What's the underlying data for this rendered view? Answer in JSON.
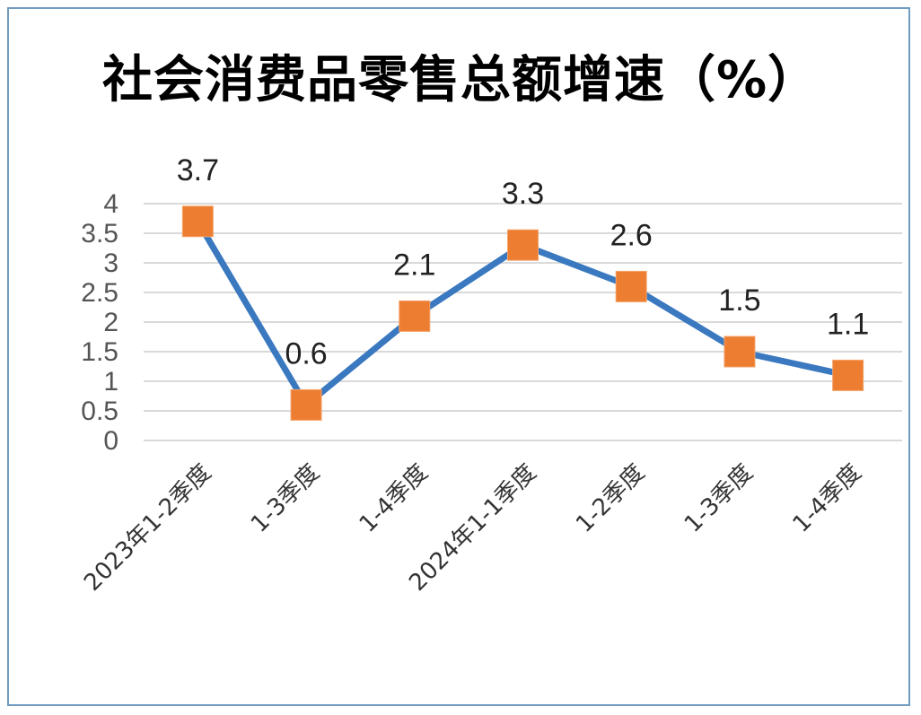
{
  "chart_data": {
    "type": "line",
    "title": "社会消费品零售总额增速（%）",
    "categories": [
      "2023年1-2季度",
      "1-3季度",
      "1-4季度",
      "2024年1-1季度",
      "1-2季度",
      "1-3季度",
      "1-4季度"
    ],
    "series": [
      {
        "values": [
          3.7,
          0.6,
          2.1,
          3.3,
          2.6,
          1.5,
          1.1
        ]
      }
    ],
    "ylim": [
      0,
      4
    ],
    "yticks": [
      "0",
      "0.5",
      "1",
      "1.5",
      "2",
      "2.5",
      "3",
      "3.5",
      "4"
    ],
    "grid": true,
    "legend": "none",
    "colors": {
      "line": "#3a78bf",
      "marker": "#ed7d31",
      "grid": "#d9d9d9",
      "border": "#6f9cc1"
    }
  }
}
